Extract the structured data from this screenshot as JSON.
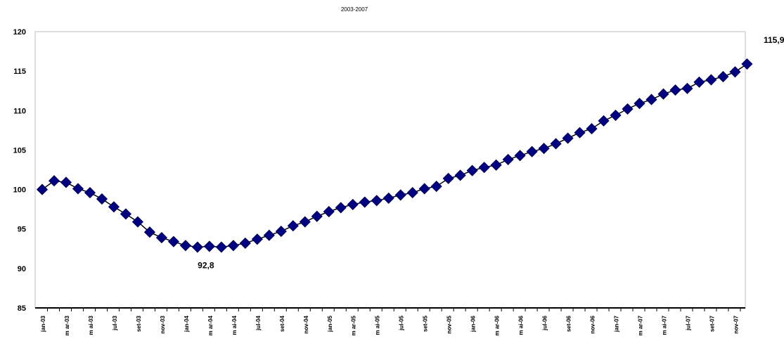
{
  "chart_data": {
    "type": "line",
    "title": "",
    "subtitle": "2003-2007",
    "xlabel": "",
    "ylabel": "",
    "ylim": [
      85,
      120
    ],
    "yticks": [
      85,
      90,
      95,
      100,
      105,
      110,
      115,
      120
    ],
    "grid": false,
    "legend": "none",
    "series_color": "#000080",
    "x": [
      "jan-03",
      "fev-03",
      "mar-03",
      "abr-03",
      "mai-03",
      "jun-03",
      "jul-03",
      "ago-03",
      "set-03",
      "out-03",
      "nov-03",
      "dez-03",
      "jan-04",
      "fev-04",
      "mar-04",
      "abr-04",
      "mai-04",
      "jun-04",
      "jul-04",
      "ago-04",
      "set-04",
      "out-04",
      "nov-04",
      "dez-04",
      "jan-05",
      "fev-05",
      "mar-05",
      "abr-05",
      "mai-05",
      "jun-05",
      "jul-05",
      "ago-05",
      "set-05",
      "out-05",
      "nov-05",
      "dez-05",
      "jan-06",
      "fev-06",
      "mar-06",
      "abr-06",
      "mai-06",
      "jun-06",
      "jul-06",
      "ago-06",
      "set-06",
      "out-06",
      "nov-06",
      "dez-06",
      "jan-07",
      "fev-07",
      "mar-07",
      "abr-07",
      "mai-07",
      "jun-07",
      "jul-07",
      "ago-07",
      "set-07",
      "out-07",
      "nov-07",
      "dez-07"
    ],
    "x_tick_labels": [
      "jan-03",
      "m ar-03",
      "m ai-03",
      "jul-03",
      "set-03",
      "nov-03",
      "jan-04",
      "m ar-04",
      "m ai-04",
      "jul-04",
      "set-04",
      "nov-04",
      "jan-05",
      "m ar-05",
      "m ai-05",
      "jul-05",
      "set-05",
      "nov-05",
      "jan-06",
      "m ar-06",
      "m ai-06",
      "jul-06",
      "set-06",
      "nov-06",
      "jan-07",
      "m ar-07",
      "m ai-07",
      "jul-07",
      "set-07",
      "nov-07"
    ],
    "series": [
      {
        "values": [
          100.0,
          101.1,
          100.9,
          100.1,
          99.6,
          98.8,
          97.8,
          96.9,
          95.9,
          94.6,
          93.9,
          93.4,
          92.9,
          92.7,
          92.8,
          92.7,
          92.9,
          93.2,
          93.7,
          94.2,
          94.7,
          95.4,
          95.9,
          96.6,
          97.2,
          97.7,
          98.1,
          98.4,
          98.6,
          98.9,
          99.3,
          99.6,
          100.1,
          100.4,
          101.4,
          101.8,
          102.4,
          102.8,
          103.1,
          103.8,
          104.3,
          104.8,
          105.2,
          105.8,
          106.5,
          107.2,
          107.7,
          108.7,
          109.4,
          110.2,
          110.9,
          111.4,
          112.1,
          112.6,
          112.8,
          113.6,
          113.9,
          114.3,
          114.9,
          115.9
        ]
      }
    ],
    "annotations": [
      {
        "text": "92,8",
        "x": "mar-04",
        "y": 92.8
      },
      {
        "text": "115,9",
        "x": "dez-07",
        "y": 115.9
      }
    ]
  }
}
